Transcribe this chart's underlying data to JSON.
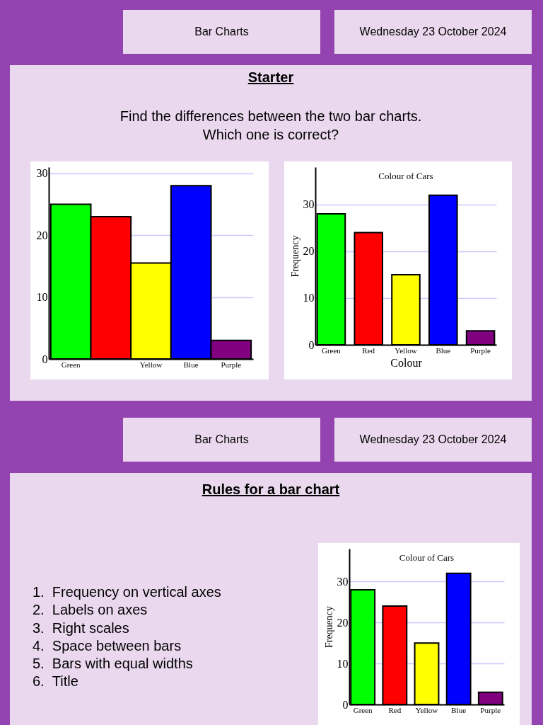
{
  "chart_data": [
    {
      "type": "other",
      "title": "Bar Charts"
    },
    {
      "type": "other",
      "title": "Wednesday 23 October 2024"
    },
    {
      "type": "other",
      "title": "Starter",
      "annotations": [
        "Find the differences between the two bar charts.",
        "Which one is correct?"
      ]
    },
    {
      "type": "bar",
      "categories": [
        "Green",
        null,
        "Yellow",
        "Blue",
        "Purple"
      ],
      "values": [
        25,
        23,
        15.5,
        28,
        3
      ],
      "colors": [
        "#00ff00",
        "#ff0000",
        "#ffff00",
        "#0000ff",
        "#800080"
      ],
      "ylim": [
        0,
        31
      ],
      "yticks": [
        0,
        10,
        20,
        30
      ],
      "grid": "y"
    },
    {
      "type": "bar",
      "title": "Colour of Cars",
      "xlabel": "Colour",
      "ylabel": "Frequency",
      "categories": [
        "Green",
        "Red",
        "Yellow",
        "Blue",
        "Purple"
      ],
      "values": [
        28,
        24,
        15,
        32,
        3
      ],
      "colors": [
        "#00ff00",
        "#ff0000",
        "#ffff00",
        "#0000ff",
        "#800080"
      ],
      "ylim": [
        0,
        38
      ],
      "yticks": [
        0,
        10,
        20,
        30
      ],
      "grid": "y"
    },
    {
      "type": "other",
      "title": "Bar Charts"
    },
    {
      "type": "other",
      "title": "Wednesday 23 October 2024"
    },
    {
      "type": "other",
      "title": "Rules for a bar chart",
      "annotations": [
        "1.\tFrequency on vertical axes",
        "2.\tLabels on axes",
        "3.\tRight scales",
        "4.\tSpace between bars",
        "5.\tBars with equal widths",
        "6.\tTitle"
      ]
    },
    {
      "type": "bar",
      "title": "Colour of Cars",
      "ylabel": "Frequency",
      "categories": [
        "Green",
        "Red",
        "Yellow",
        "Blue",
        "Purple"
      ],
      "values": [
        28,
        24,
        15,
        32,
        3
      ],
      "colors": [
        "#00ff00",
        "#ff0000",
        "#ffff00",
        "#0000ff",
        "#800080"
      ],
      "ylim": [
        0,
        38
      ],
      "yticks": [
        0,
        10,
        20,
        30
      ],
      "grid": "y"
    }
  ]
}
